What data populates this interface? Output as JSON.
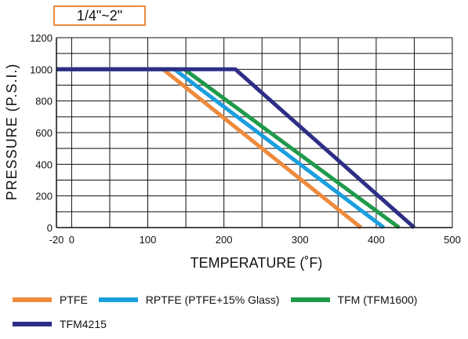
{
  "size_label": "1/4\"~2\"",
  "chart_data": {
    "type": "line",
    "title": "",
    "xlabel": "TEMPERATURE (˚F)",
    "ylabel": "PRESSURE (P.S.I.)",
    "xlim": [
      -20,
      500
    ],
    "ylim": [
      0,
      1200
    ],
    "x_ticks": [
      -20,
      0,
      100,
      200,
      300,
      400,
      500
    ],
    "y_ticks": [
      0,
      200,
      400,
      600,
      800,
      1000,
      1200
    ],
    "x_grid": [
      -20,
      0,
      50,
      100,
      150,
      200,
      250,
      300,
      350,
      400,
      450,
      500
    ],
    "y_grid": [
      0,
      100,
      200,
      300,
      400,
      500,
      600,
      700,
      800,
      900,
      1000,
      1100,
      1200
    ],
    "grid": true,
    "legend_position": "bottom",
    "series": [
      {
        "name": "PTFE",
        "color": "#ee8a3c",
        "points": [
          [
            -20,
            1000
          ],
          [
            120,
            1000
          ],
          [
            380,
            0
          ]
        ]
      },
      {
        "name": "RPTFE (PTFE+15% Glass)",
        "color": "#1a9fde",
        "points": [
          [
            -20,
            1000
          ],
          [
            135,
            1000
          ],
          [
            410,
            0
          ]
        ]
      },
      {
        "name": "TFM (TFM1600)",
        "color": "#1f9a4a",
        "points": [
          [
            -20,
            1000
          ],
          [
            148,
            1000
          ],
          [
            430,
            0
          ]
        ]
      },
      {
        "name": "TFM4215",
        "color": "#2e2e86",
        "points": [
          [
            -20,
            1000
          ],
          [
            215,
            1000
          ],
          [
            450,
            0
          ]
        ]
      }
    ]
  }
}
